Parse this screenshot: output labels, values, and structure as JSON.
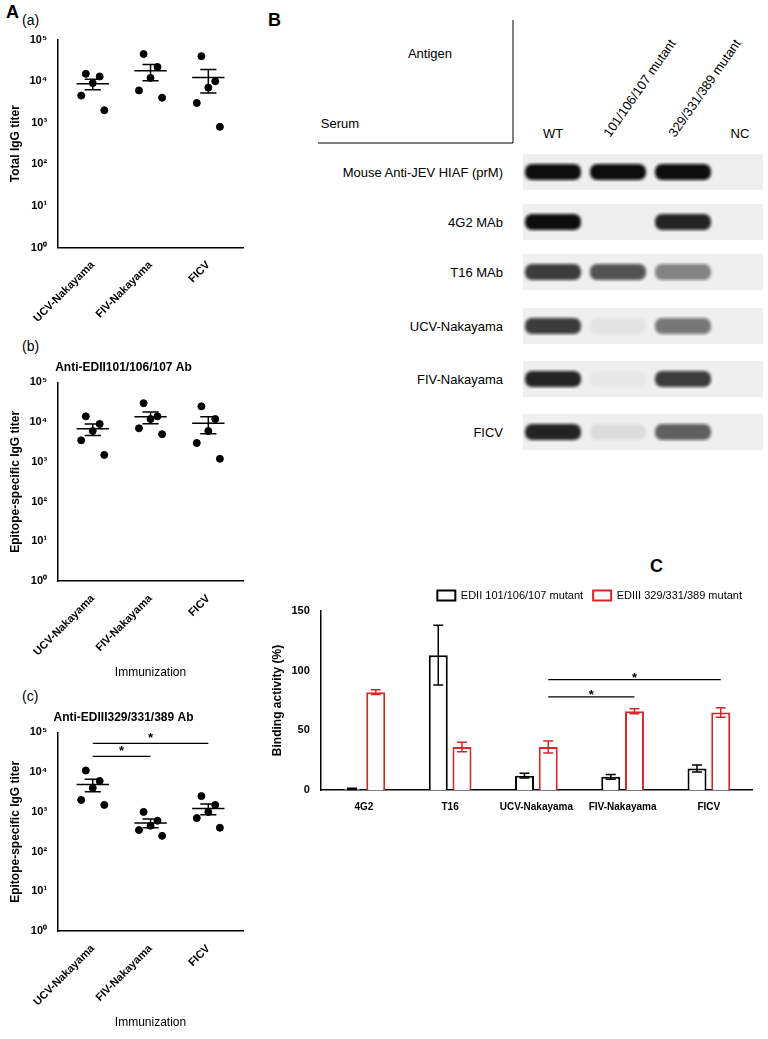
{
  "panel_labels": [
    "A",
    "B",
    "C"
  ],
  "chart_data": [
    {
      "type": "scatter",
      "panel_label": "(a)",
      "y_label": "Total IgG titer",
      "categories": [
        "UCV-Nakayama",
        "FIV-Nakayama",
        "FICV"
      ],
      "values": [
        [
          15000,
          13000,
          9000,
          4500,
          2000
        ],
        [
          45000,
          22000,
          12000,
          6000,
          4000
        ],
        [
          40000,
          10000,
          7000,
          3000,
          800
        ]
      ],
      "mean": [
        8700,
        17800,
        12200
      ],
      "sem": [
        2500,
        7500,
        7000
      ],
      "color": "#000000",
      "log": "y",
      "grid": false,
      "ylim": [
        1,
        100000
      ],
      "yticks": [
        {
          "value": 1,
          "label": "10⁰"
        },
        {
          "value": 10,
          "label": "10¹"
        },
        {
          "value": 100,
          "label": "10²"
        },
        {
          "value": 1000,
          "label": "10³"
        },
        {
          "value": 10000,
          "label": "10⁴"
        },
        {
          "value": 100000,
          "label": "10⁵"
        }
      ]
    },
    {
      "type": "scatter",
      "panel_label": "(b)",
      "title": "Anti-EDII101/106/107 Ab",
      "y_label": "Epitope-specific IgG titer",
      "x_label": "Immunization",
      "categories": [
        "UCV-Nakayama",
        "FIV-Nakayama",
        "FICV"
      ],
      "values": [
        [
          14000,
          9000,
          6000,
          3500,
          1500
        ],
        [
          30000,
          14000,
          12000,
          7000,
          5000
        ],
        [
          25000,
          12000,
          6000,
          3000,
          1200
        ]
      ],
      "mean": [
        6800,
        13600,
        9400
      ],
      "sem": [
        2200,
        4500,
        4300
      ],
      "color": "#000000",
      "log": "y",
      "grid": false,
      "ylim": [
        1,
        100000
      ],
      "yticks": [
        {
          "value": 1,
          "label": "10⁰"
        },
        {
          "value": 10,
          "label": "10¹"
        },
        {
          "value": 100,
          "label": "10²"
        },
        {
          "value": 1000,
          "label": "10³"
        },
        {
          "value": 10000,
          "label": "10⁴"
        },
        {
          "value": 100000,
          "label": "10⁵"
        }
      ]
    },
    {
      "type": "scatter",
      "panel_label": "(c)",
      "title": "Anti-EDIII329/331/389 Ab",
      "y_label": "Epitope-specific IgG titer",
      "x_label": "Immunization",
      "categories": [
        "UCV-Nakayama",
        "FIV-Nakayama",
        "FICV"
      ],
      "values": [
        [
          11000,
          6000,
          4000,
          2000,
          1500
        ],
        [
          1000,
          600,
          450,
          350,
          250
        ],
        [
          2500,
          1500,
          1000,
          700,
          400
        ]
      ],
      "mean": [
        4900,
        530,
        1220
      ],
      "sem": [
        1700,
        130,
        370
      ],
      "color": "#000000",
      "significance": [
        {
          "from": "UCV-Nakayama",
          "to": "FIV-Nakayama",
          "label": "*"
        },
        {
          "from": "UCV-Nakayama",
          "to": "FICV",
          "label": "*"
        }
      ],
      "log": "y",
      "grid": false,
      "ylim": [
        1,
        100000
      ],
      "yticks": [
        {
          "value": 1,
          "label": "10⁰"
        },
        {
          "value": 10,
          "label": "10¹"
        },
        {
          "value": 100,
          "label": "10²"
        },
        {
          "value": 1000,
          "label": "10³"
        },
        {
          "value": 10000,
          "label": "10⁴"
        },
        {
          "value": 100000,
          "label": "10⁵"
        }
      ]
    },
    {
      "type": "bar",
      "y_label": "Binding activity (%)",
      "categories": [
        "4G2",
        "T16",
        "UCV-Nakayama",
        "FIV-Nakayama",
        "FICV"
      ],
      "series": [
        {
          "name": "EDII 101/106/107 mutant",
          "color": "#000000",
          "values": [
            1,
            113,
            12,
            11,
            18
          ],
          "errors": [
            0.5,
            25,
            2,
            2,
            3
          ]
        },
        {
          "name": "EDIII 329/331/389 mutant",
          "color": "#d62728",
          "values": [
            82,
            36,
            36,
            66,
            65
          ],
          "errors": [
            2,
            4,
            5,
            2,
            4
          ]
        }
      ],
      "significance": [
        {
          "series": "EDIII 329/331/389 mutant",
          "from": "UCV-Nakayama",
          "to": "FIV-Nakayama",
          "label": "*"
        },
        {
          "series": "EDIII 329/331/389 mutant",
          "from": "UCV-Nakayama",
          "to": "FICV",
          "label": "*"
        }
      ],
      "ylim": [
        0,
        150
      ],
      "yticks": [
        0,
        50,
        100,
        150
      ],
      "grid": false,
      "legend": "top-right"
    }
  ],
  "blot": {
    "column_header": "Antigen",
    "row_header": "Serum",
    "columns": [
      "WT",
      "101/106/107 mutant",
      "329/331/389 mutant",
      "NC"
    ],
    "rows": [
      {
        "label": "Mouse Anti-JEV HIAF (prM)",
        "band_intensity": [
          1,
          1,
          1,
          0
        ]
      },
      {
        "label": "4G2 MAb",
        "band_intensity": [
          1,
          0,
          0.9,
          0
        ]
      },
      {
        "label": "T16 MAb",
        "band_intensity": [
          0.8,
          0.7,
          0.5,
          0
        ]
      },
      {
        "label": "UCV-Nakayama",
        "band_intensity": [
          0.8,
          0.05,
          0.55,
          0
        ]
      },
      {
        "label": "FIV-Nakayama",
        "band_intensity": [
          0.9,
          0.03,
          0.8,
          0
        ]
      },
      {
        "label": "FICV",
        "band_intensity": [
          0.9,
          0.08,
          0.65,
          0
        ]
      }
    ]
  }
}
